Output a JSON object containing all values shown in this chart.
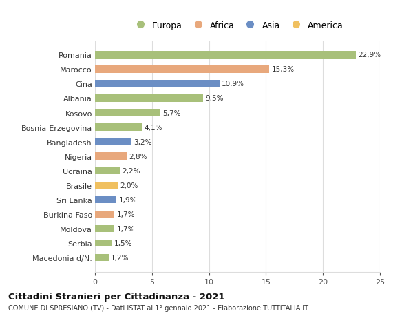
{
  "countries": [
    "Romania",
    "Marocco",
    "Cina",
    "Albania",
    "Kosovo",
    "Bosnia-Erzegovina",
    "Bangladesh",
    "Nigeria",
    "Ucraina",
    "Brasile",
    "Sri Lanka",
    "Burkina Faso",
    "Moldova",
    "Serbia",
    "Macedonia d/N."
  ],
  "values": [
    22.9,
    15.3,
    10.9,
    9.5,
    5.7,
    4.1,
    3.2,
    2.8,
    2.2,
    2.0,
    1.9,
    1.7,
    1.7,
    1.5,
    1.2
  ],
  "continents": [
    "Europa",
    "Africa",
    "Asia",
    "Europa",
    "Europa",
    "Europa",
    "Asia",
    "Africa",
    "Europa",
    "America",
    "Asia",
    "Africa",
    "Europa",
    "Europa",
    "Europa"
  ],
  "colors": {
    "Europa": "#a8c07a",
    "Africa": "#e8a87c",
    "Asia": "#6b8ec4",
    "America": "#f0c060"
  },
  "legend_order": [
    "Europa",
    "Africa",
    "Asia",
    "America"
  ],
  "xlim": [
    0,
    25
  ],
  "xticks": [
    0,
    5,
    10,
    15,
    20,
    25
  ],
  "title": "Cittadini Stranieri per Cittadinanza - 2021",
  "subtitle": "COMUNE DI SPRESIANO (TV) - Dati ISTAT al 1° gennaio 2021 - Elaborazione TUTTITALIA.IT",
  "bg_color": "#ffffff",
  "grid_color": "#dddddd",
  "bar_height": 0.5
}
